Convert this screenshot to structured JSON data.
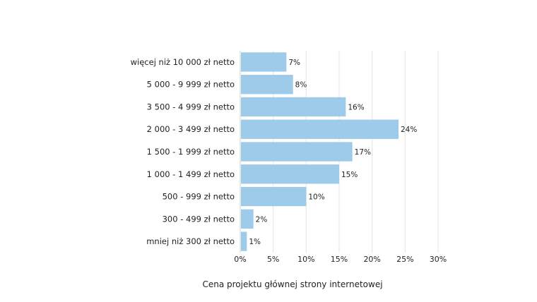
{
  "chart_data": {
    "type": "bar",
    "orientation": "horizontal",
    "categories": [
      "więcej niż 10 000 zł netto",
      "5 000 - 9 999 zł netto",
      "3 500 - 4 999 zł netto",
      "2 000 - 3 499 zł netto",
      "1 500 - 1 999 zł netto",
      "1 000 - 1 499 zł netto",
      "500 - 999 zł netto",
      "300 - 499 zł netto",
      "mniej niż 300 zł netto"
    ],
    "values": [
      7,
      8,
      16,
      24,
      17,
      15,
      10,
      2,
      1
    ],
    "value_labels": [
      "7%",
      "8%",
      "16%",
      "24%",
      "17%",
      "15%",
      "10%",
      "2%",
      "1%"
    ],
    "xlim": [
      0,
      30
    ],
    "xticks": [
      0,
      5,
      10,
      15,
      20,
      25,
      30
    ],
    "xtick_labels": [
      "0%",
      "5%",
      "10%",
      "15%",
      "20%",
      "25%",
      "30%"
    ],
    "xlabel": "Cena projektu głównej strony internetowej",
    "ylabel": "",
    "title": "",
    "grid": true,
    "legend": "none",
    "colors": {
      "bar": "#9ecbe9"
    }
  }
}
